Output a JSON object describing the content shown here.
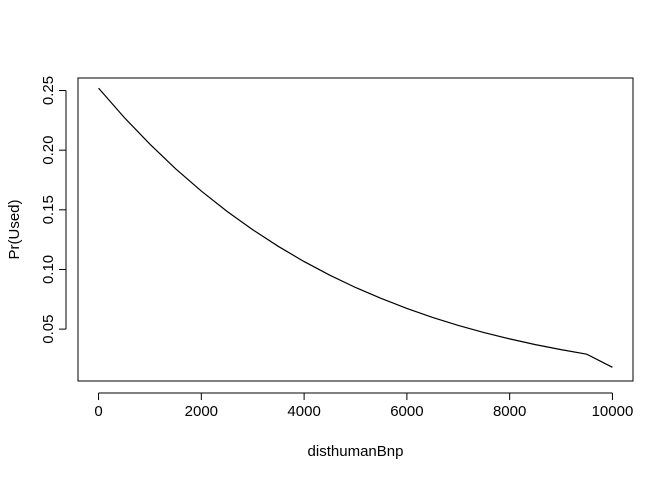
{
  "chart_data": {
    "type": "line",
    "title": "",
    "xlabel": "disthumanBnp",
    "ylabel": "Pr(Used)",
    "xlim": [
      -400,
      10400
    ],
    "ylim": [
      0.0065,
      0.2605
    ],
    "x_ticks": [
      0,
      2000,
      4000,
      6000,
      8000,
      10000
    ],
    "x_tick_labels": [
      "0",
      "2000",
      "4000",
      "6000",
      "8000",
      "10000"
    ],
    "y_ticks": [
      0.05,
      0.1,
      0.15,
      0.2,
      0.25
    ],
    "y_tick_labels": [
      "0.05",
      "0.10",
      "0.15",
      "0.20",
      "0.25"
    ],
    "grid": false,
    "legend": "none",
    "series": [
      {
        "color": "#000000",
        "x": [
          0,
          500,
          1000,
          1500,
          2000,
          2500,
          3000,
          3500,
          4000,
          4500,
          5000,
          5500,
          6000,
          6500,
          7000,
          7500,
          8000,
          8500,
          9000,
          9500,
          10000
        ],
        "y": [
          0.252,
          0.2274,
          0.205,
          0.1844,
          0.1657,
          0.1487,
          0.1333,
          0.1193,
          0.1066,
          0.0952,
          0.0849,
          0.0757,
          0.0673,
          0.0598,
          0.0531,
          0.0471,
          0.0418,
          0.037,
          0.0328,
          0.029,
          0.018
        ]
      }
    ]
  }
}
